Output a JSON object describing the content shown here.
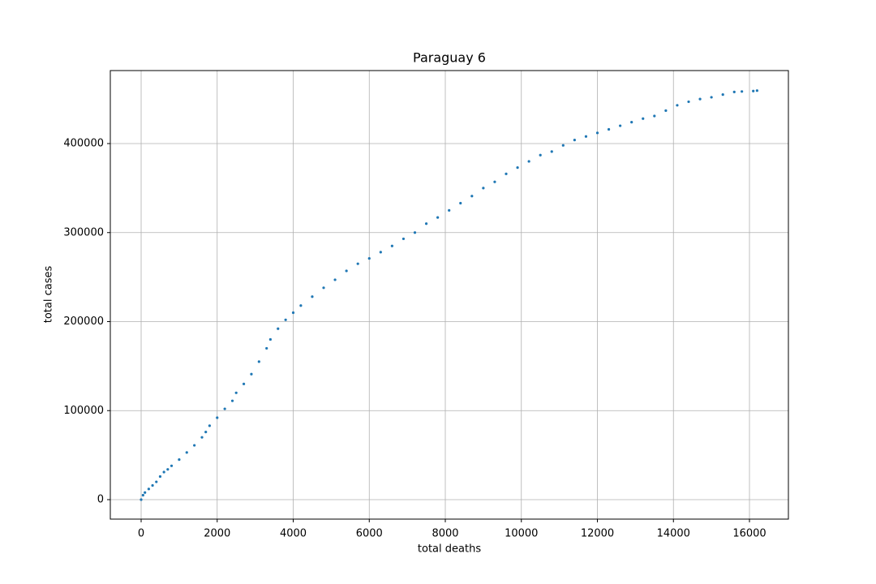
{
  "chart_data": {
    "type": "scatter",
    "title": "Paraguay 6",
    "xlabel": "total deaths",
    "ylabel": "total cases",
    "color": "#1f77b4",
    "grid": true,
    "xlim": [
      -811,
      17024
    ],
    "ylim": [
      -21868,
      482005
    ],
    "xticks": [
      0,
      2000,
      4000,
      6000,
      8000,
      10000,
      12000,
      14000,
      16000
    ],
    "yticks": [
      0,
      100000,
      200000,
      300000,
      400000
    ],
    "x": [
      0,
      50,
      100,
      200,
      300,
      400,
      500,
      600,
      700,
      800,
      1000,
      1200,
      1400,
      1600,
      1700,
      1800,
      2000,
      2200,
      2400,
      2500,
      2700,
      2900,
      3100,
      3300,
      3400,
      3600,
      3800,
      4000,
      4200,
      4500,
      4800,
      5100,
      5400,
      5700,
      6000,
      6300,
      6600,
      6900,
      7200,
      7500,
      7800,
      8100,
      8400,
      8700,
      9000,
      9300,
      9600,
      9900,
      10200,
      10500,
      10800,
      11100,
      11400,
      11700,
      12000,
      12300,
      12600,
      12900,
      13200,
      13500,
      13800,
      14100,
      14400,
      14700,
      15000,
      15300,
      15600,
      15800,
      16100,
      16200
    ],
    "values": [
      0,
      5000,
      8000,
      12000,
      16000,
      20000,
      26000,
      31000,
      34000,
      38000,
      45000,
      53000,
      61000,
      70000,
      76000,
      83000,
      92000,
      102000,
      111000,
      120000,
      130000,
      141000,
      155000,
      170000,
      180000,
      192000,
      202000,
      210000,
      218000,
      228000,
      238000,
      247000,
      257000,
      265000,
      271000,
      278000,
      285000,
      293000,
      300000,
      310000,
      317000,
      325000,
      333000,
      341000,
      350000,
      357000,
      366000,
      373000,
      380000,
      387000,
      391000,
      398000,
      404000,
      408000,
      412000,
      416000,
      420000,
      424000,
      428000,
      431000,
      437000,
      443000,
      447000,
      450000,
      452000,
      455000,
      458000,
      458500,
      459000,
      459500
    ]
  }
}
